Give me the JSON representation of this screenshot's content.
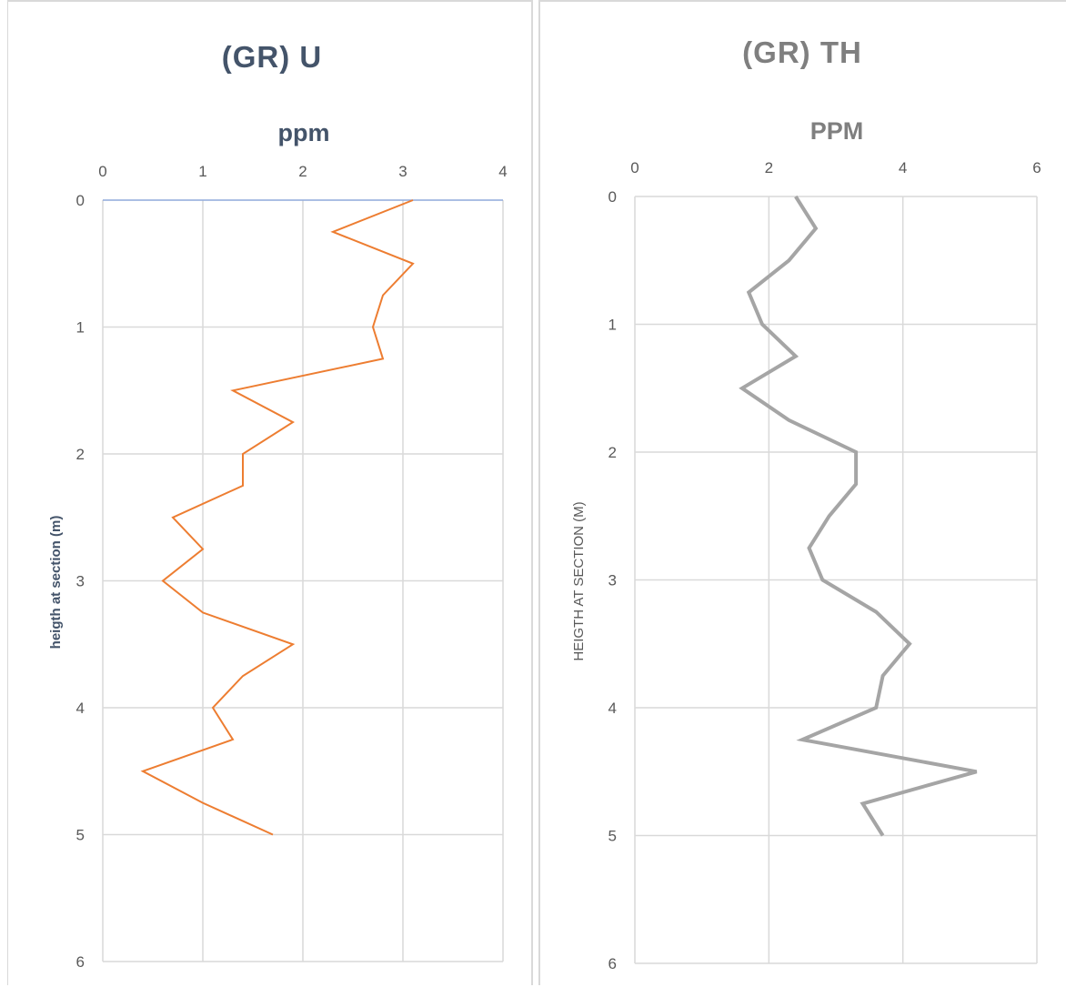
{
  "chart_data": [
    {
      "type": "line",
      "title": "(GR)    U",
      "xlabel": "ppm",
      "ylabel": "heigth at section (m)",
      "x_axis_position": "top",
      "y_axis_inverted": true,
      "xlim": [
        0,
        4
      ],
      "ylim": [
        0,
        6
      ],
      "x_ticks": [
        "0",
        "1",
        "2",
        "3",
        "4"
      ],
      "y_ticks": [
        "0",
        "1",
        "2",
        "3",
        "4",
        "5",
        "6"
      ],
      "grid": true,
      "series": [
        {
          "color": "#ed7d31",
          "x": [
            3.1,
            2.3,
            3.1,
            2.8,
            2.7,
            2.8,
            1.3,
            1.9,
            1.4,
            1.4,
            0.7,
            1.0,
            0.6,
            1.0,
            1.9,
            1.4,
            1.1,
            1.3,
            0.4,
            1.0,
            1.7
          ],
          "y": [
            0,
            0.25,
            0.5,
            0.75,
            1.0,
            1.25,
            1.5,
            1.75,
            2.0,
            2.25,
            2.5,
            2.75,
            3.0,
            3.25,
            3.5,
            3.75,
            4.0,
            4.25,
            4.5,
            4.75,
            5.0
          ]
        }
      ]
    },
    {
      "type": "line",
      "title": "(GR)     TH",
      "xlabel": "PPM",
      "ylabel": "HEIGTH AT SECTION (M)",
      "x_axis_position": "top",
      "y_axis_inverted": true,
      "xlim": [
        0,
        6
      ],
      "ylim": [
        0,
        6
      ],
      "x_ticks": [
        "0",
        "2",
        "4",
        "6"
      ],
      "y_ticks": [
        "0",
        "1",
        "2",
        "3",
        "4",
        "5",
        "6"
      ],
      "grid": true,
      "series": [
        {
          "color": "#a5a5a5",
          "x": [
            2.4,
            2.7,
            2.3,
            1.7,
            1.9,
            2.4,
            1.6,
            2.3,
            3.3,
            3.3,
            2.9,
            2.6,
            2.8,
            3.6,
            4.1,
            3.7,
            3.6,
            2.5,
            5.1,
            3.4,
            3.7
          ],
          "y": [
            0,
            0.25,
            0.5,
            0.75,
            1.0,
            1.25,
            1.5,
            1.75,
            2.0,
            2.25,
            2.5,
            2.75,
            3.0,
            3.25,
            3.5,
            3.75,
            4.0,
            4.25,
            4.5,
            4.75,
            5.0
          ]
        }
      ]
    }
  ]
}
